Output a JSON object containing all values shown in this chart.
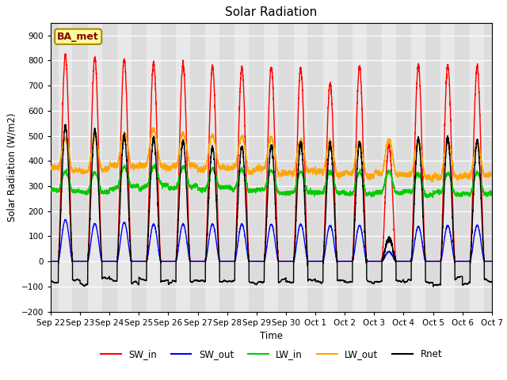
{
  "title": "Solar Radiation",
  "ylabel": "Solar Radiation (W/m2)",
  "xlabel": "Time",
  "station_label": "BA_met",
  "ylim": [
    -200,
    950
  ],
  "yticks": [
    -200,
    -100,
    0,
    100,
    200,
    300,
    400,
    500,
    600,
    700,
    800,
    900
  ],
  "x_tick_labels": [
    "Sep 22",
    "Sep 23",
    "Sep 24",
    "Sep 25",
    "Sep 26",
    "Sep 27",
    "Sep 28",
    "Sep 29",
    "Sep 30",
    "Oct 1",
    "Oct 2",
    "Oct 3",
    "Oct 4",
    "Oct 5",
    "Oct 6",
    "Oct 7"
  ],
  "num_days": 15,
  "sw_in_peaks": [
    820,
    810,
    805,
    790,
    785,
    775,
    770,
    775,
    770,
    710,
    775,
    460,
    780,
    780,
    775
  ],
  "sw_out_peaks": [
    165,
    150,
    155,
    148,
    148,
    148,
    148,
    148,
    148,
    143,
    143,
    38,
    138,
    143,
    143
  ],
  "lw_in_base": [
    280,
    275,
    295,
    300,
    295,
    290,
    285,
    280,
    275,
    275,
    270,
    275,
    270,
    270,
    270
  ],
  "lw_out_base": [
    365,
    360,
    380,
    385,
    378,
    370,
    365,
    360,
    355,
    350,
    345,
    350,
    340,
    340,
    340
  ],
  "rnet_peaks": [
    540,
    525,
    500,
    490,
    480,
    455,
    455,
    460,
    470,
    470,
    470,
    90,
    490,
    490,
    480
  ],
  "rnet_night": -80,
  "colors": {
    "SW_in": "#FF0000",
    "SW_out": "#0000FF",
    "LW_in": "#00CC00",
    "LW_out": "#FFA500",
    "Rnet": "#000000"
  },
  "bg_color": "#DCDCDC",
  "bg_night_color": "#C8C8C8",
  "station_box_color": "#FFFF99",
  "station_box_edge": "#AA8800",
  "figsize": [
    6.4,
    4.8
  ],
  "dpi": 100
}
